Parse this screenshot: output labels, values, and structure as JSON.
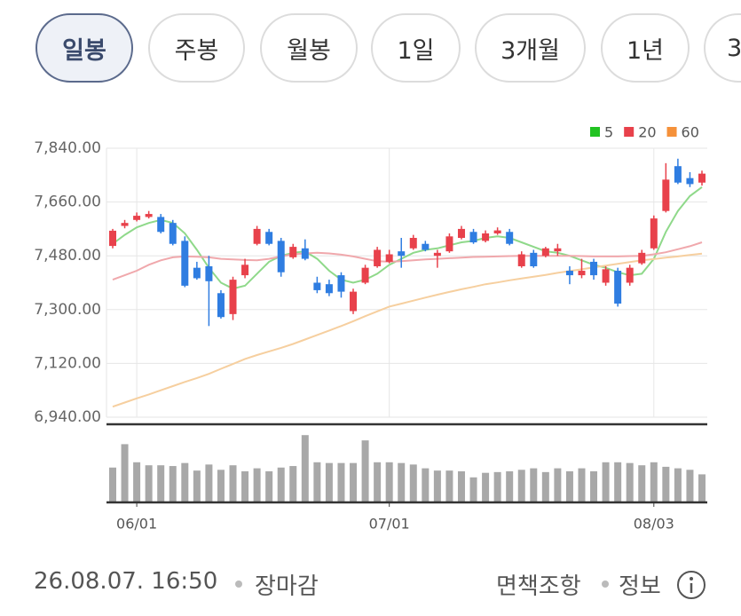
{
  "tabs": [
    "일봉",
    "주봉",
    "월봉",
    "1일",
    "3개월",
    "1년",
    "3"
  ],
  "selected_tab": 0,
  "chart_data": {
    "type": "candlestick",
    "categories": [
      null,
      null,
      "06/01",
      null,
      null,
      null,
      null,
      null,
      null,
      null,
      null,
      null,
      null,
      null,
      null,
      null,
      null,
      null,
      null,
      null,
      null,
      null,
      null,
      "07/01",
      null,
      null,
      null,
      null,
      null,
      null,
      null,
      null,
      null,
      null,
      null,
      null,
      null,
      null,
      null,
      null,
      null,
      null,
      null,
      null,
      null,
      "08/03",
      null,
      null,
      null,
      null
    ],
    "open": [
      7513,
      7580,
      7600,
      7610,
      7610,
      7590,
      7530,
      7440,
      7445,
      7355,
      7285,
      7415,
      7520,
      7560,
      7530,
      7475,
      7505,
      7390,
      7385,
      7415,
      7295,
      7390,
      7445,
      7460,
      7495,
      7505,
      7520,
      7480,
      7495,
      7540,
      7560,
      7530,
      7555,
      7560,
      7445,
      7490,
      7480,
      7495,
      7430,
      7415,
      7460,
      7390,
      7430,
      7390,
      7455,
      7505,
      7630,
      7780,
      7740,
      7725
    ],
    "high": [
      7570,
      7600,
      7625,
      7630,
      7620,
      7600,
      7545,
      7460,
      7480,
      7365,
      7410,
      7470,
      7580,
      7570,
      7540,
      7520,
      7535,
      7410,
      7400,
      7425,
      7370,
      7450,
      7510,
      7500,
      7540,
      7550,
      7530,
      7500,
      7555,
      7580,
      7570,
      7565,
      7575,
      7570,
      7495,
      7500,
      7510,
      7520,
      7445,
      7470,
      7470,
      7445,
      7440,
      7450,
      7500,
      7615,
      7790,
      7805,
      7760,
      7765
    ],
    "low": [
      7505,
      7572,
      7595,
      7605,
      7555,
      7515,
      7375,
      7400,
      7245,
      7270,
      7265,
      7405,
      7515,
      7515,
      7410,
      7470,
      7465,
      7355,
      7345,
      7340,
      7285,
      7385,
      7440,
      7455,
      7440,
      7500,
      7495,
      7440,
      7490,
      7535,
      7520,
      7525,
      7550,
      7515,
      7440,
      7440,
      7475,
      7480,
      7385,
      7405,
      7400,
      7380,
      7310,
      7380,
      7450,
      7500,
      7625,
      7720,
      7710,
      7715
    ],
    "close": [
      7564,
      7590,
      7614,
      7620,
      7560,
      7520,
      7380,
      7405,
      7395,
      7275,
      7400,
      7450,
      7570,
      7520,
      7425,
      7510,
      7470,
      7365,
      7355,
      7360,
      7360,
      7440,
      7500,
      7485,
      7480,
      7540,
      7500,
      7490,
      7545,
      7570,
      7525,
      7555,
      7565,
      7520,
      7485,
      7445,
      7505,
      7505,
      7415,
      7430,
      7415,
      7435,
      7320,
      7440,
      7490,
      7605,
      7735,
      7725,
      7720,
      7755
    ],
    "up_color": "#e8414b",
    "down_color": "#2f7de1",
    "ylim": [
      6940,
      7840
    ],
    "yticks": [
      {
        "value": 6940,
        "label": "6,940.00"
      },
      {
        "value": 7120,
        "label": "7,120.00"
      },
      {
        "value": 7300,
        "label": "7,300.00"
      },
      {
        "value": 7480,
        "label": "7,480.00"
      },
      {
        "value": 7660,
        "label": "7,660.00"
      },
      {
        "value": 7840,
        "label": "7,840.00"
      }
    ],
    "grid": true,
    "legend": "top-right",
    "moving_averages": [
      {
        "name": "5",
        "color": "#22c322",
        "line_color": "#8fd98a",
        "values": [
          7520,
          7550,
          7575,
          7590,
          7600,
          7590,
          7555,
          7500,
          7440,
          7390,
          7370,
          7380,
          7420,
          7460,
          7480,
          7490,
          7495,
          7470,
          7430,
          7400,
          7390,
          7400,
          7420,
          7450,
          7470,
          7490,
          7500,
          7505,
          7515,
          7525,
          7530,
          7540,
          7545,
          7540,
          7525,
          7510,
          7495,
          7490,
          7480,
          7465,
          7450,
          7440,
          7425,
          7415,
          7420,
          7470,
          7560,
          7630,
          7680,
          7710
        ]
      },
      {
        "name": "20",
        "color": "#e8414b",
        "line_color": "#f0a8ac",
        "values": [
          7400,
          7415,
          7430,
          7450,
          7465,
          7475,
          7478,
          7477,
          7475,
          7470,
          7468,
          7466,
          7465,
          7470,
          7478,
          7485,
          7488,
          7490,
          7488,
          7484,
          7478,
          7470,
          7462,
          7460,
          7462,
          7465,
          7468,
          7470,
          7472,
          7474,
          7476,
          7477,
          7478,
          7479,
          7480,
          7480,
          7480,
          7480,
          7480,
          7479,
          7478,
          7478,
          7478,
          7479,
          7480,
          7485,
          7492,
          7502,
          7512,
          7525
        ]
      },
      {
        "name": "60",
        "color": "#f5913a",
        "line_color": "#f6cf9f",
        "values": [
          6975,
          6989,
          7003,
          7016,
          7030,
          7044,
          7058,
          7071,
          7085,
          7102,
          7118,
          7135,
          7148,
          7160,
          7172,
          7185,
          7200,
          7215,
          7230,
          7245,
          7261,
          7278,
          7294,
          7310,
          7320,
          7330,
          7340,
          7350,
          7359,
          7368,
          7376,
          7385,
          7391,
          7398,
          7404,
          7410,
          7416,
          7423,
          7429,
          7435,
          7441,
          7447,
          7453,
          7459,
          7465,
          7469,
          7474,
          7478,
          7483,
          7487
        ]
      }
    ],
    "volume": {
      "color": "#a8a8a8",
      "ylim": [
        0,
        100
      ],
      "values": [
        45,
        76,
        52,
        48,
        48,
        47,
        51,
        41,
        49,
        42,
        48,
        40,
        44,
        40,
        45,
        47,
        88,
        52,
        51,
        51,
        51,
        81,
        52,
        52,
        51,
        49,
        44,
        41,
        41,
        40,
        32,
        38,
        39,
        40,
        42,
        44,
        39,
        44,
        40,
        44,
        40,
        52,
        52,
        51,
        48,
        52,
        46,
        44,
        42,
        36
      ]
    }
  },
  "footer": {
    "timestamp": "26.08.07. 16:50",
    "status": "장마감",
    "disclaimer": "면책조항",
    "info": "정보"
  }
}
